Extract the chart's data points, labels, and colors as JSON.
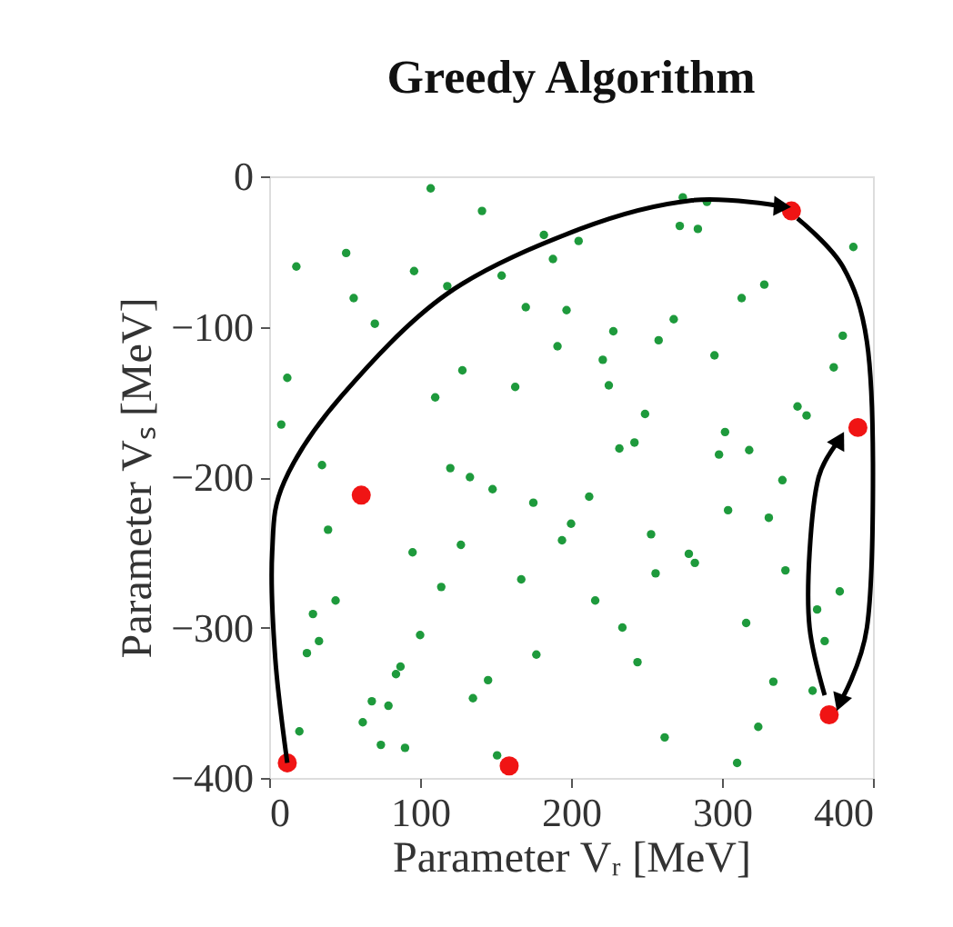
{
  "chart_data": {
    "type": "scatter",
    "title": "Greedy Algorithm",
    "xlabel": "Parameter Vᵣ [MeV]",
    "ylabel": "Parameter Vₛ [MeV]",
    "xlim": [
      0,
      400
    ],
    "ylim": [
      -400,
      0
    ],
    "xticks": [
      0,
      100,
      200,
      300,
      400
    ],
    "yticks": [
      0,
      {
        "value": -100,
        "label": "−100"
      },
      {
        "value": -200,
        "label": "−200"
      },
      {
        "value": -300,
        "label": "−300"
      },
      {
        "value": -400,
        "label": "−400"
      }
    ],
    "grid": false,
    "series": [
      {
        "color": "#1e9a3c",
        "marker": "circle",
        "x": [
          107,
          141,
          182,
          205,
          51,
          18,
          188,
          96,
          118,
          154,
          56,
          170,
          197,
          70,
          191,
          128,
          12,
          163,
          110,
          8,
          35,
          120,
          133,
          274,
          290,
          272,
          284,
          387,
          328,
          313,
          268,
          228,
          258,
          380,
          221,
          295,
          374,
          225,
          350,
          356,
          249,
          302,
          232,
          242,
          298,
          318,
          340,
          148,
          175,
          200,
          194,
          39,
          127,
          95,
          167,
          114,
          44,
          29,
          100,
          33,
          25,
          177,
          87,
          84,
          145,
          135,
          68,
          79,
          62,
          20,
          74,
          90,
          151,
          212,
          304,
          331,
          253,
          278,
          282,
          256,
          342,
          378,
          216,
          363,
          316,
          234,
          368,
          244,
          334,
          360,
          324,
          262,
          310
        ],
        "values": [
          -8,
          -23,
          -39,
          -43,
          -51,
          -60,
          -55,
          -63,
          -73,
          -66,
          -81,
          -87,
          -89,
          -98,
          -113,
          -129,
          -134,
          -140,
          -147,
          -165,
          -192,
          -194,
          -200,
          -14,
          -17,
          -33,
          -35,
          -47,
          -72,
          -81,
          -95,
          -103,
          -109,
          -106,
          -122,
          -119,
          -127,
          -139,
          -153,
          -159,
          -158,
          -170,
          -181,
          -177,
          -185,
          -182,
          -202,
          -208,
          -217,
          -231,
          -242,
          -235,
          -245,
          -250,
          -268,
          -273,
          -282,
          -291,
          -305,
          -309,
          -317,
          -318,
          -326,
          -331,
          -335,
          -347,
          -349,
          -352,
          -363,
          -369,
          -378,
          -380,
          -385,
          -213,
          -222,
          -227,
          -238,
          -251,
          -257,
          -264,
          -262,
          -276,
          -282,
          -288,
          -297,
          -300,
          -309,
          -323,
          -336,
          -342,
          -366,
          -373,
          -390
        ]
      },
      {
        "color": "#f01414",
        "marker": "circle",
        "x": [
          12,
          346,
          371,
          390,
          61,
          159
        ],
        "values": [
          -390,
          -23,
          -358,
          -167,
          -212,
          -392
        ]
      },
      {
        "type": "line",
        "color": "#000000",
        "x": [
          12,
          4,
          2,
          10,
          48,
          118,
          206,
          280,
          340
        ],
        "values": [
          -390,
          -320,
          -250,
          -203,
          -146,
          -78,
          -35,
          -16,
          -20
        ]
      },
      {
        "type": "line",
        "color": "#000000",
        "x": [
          350,
          380,
          396,
          400,
          396,
          378
        ],
        "values": [
          -28,
          -60,
          -110,
          -197,
          -300,
          -350
        ]
      },
      {
        "type": "line",
        "color": "#000000",
        "x": [
          368,
          358,
          358,
          364,
          378
        ],
        "values": [
          -345,
          -300,
          -250,
          -200,
          -175
        ]
      }
    ]
  }
}
